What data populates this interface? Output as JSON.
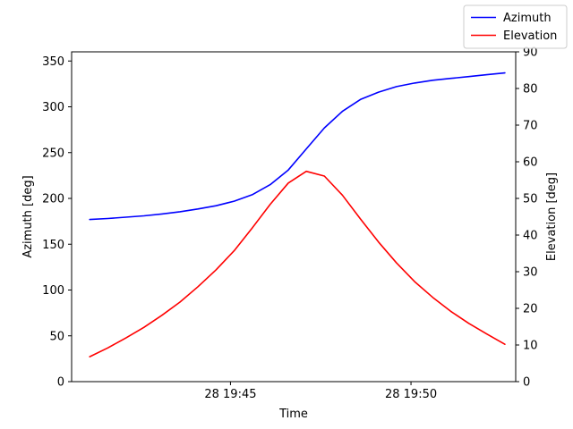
{
  "chart_data": {
    "type": "line",
    "x_axis": {
      "label": "Time",
      "range_minutes": [
        40.6,
        52.9
      ],
      "ticks": [
        {
          "value": 45,
          "label": "28 19:45"
        },
        {
          "value": 50,
          "label": "28 19:50"
        }
      ]
    },
    "y_left": {
      "label": "Azimuth [deg]",
      "ylim": [
        0,
        360
      ],
      "ticks": [
        0,
        50,
        100,
        150,
        200,
        250,
        300,
        350
      ]
    },
    "y_right": {
      "label": "Elevation [deg]",
      "ylim": [
        0,
        90
      ],
      "ticks": [
        0,
        10,
        20,
        30,
        40,
        50,
        60,
        70,
        80,
        90
      ]
    },
    "x": [
      41.1,
      41.6,
      42.1,
      42.6,
      43.1,
      43.6,
      44.1,
      44.6,
      45.1,
      45.6,
      46.1,
      46.6,
      47.1,
      47.6,
      48.1,
      48.6,
      49.1,
      49.6,
      50.1,
      50.6,
      51.1,
      51.6,
      52.1,
      52.6
    ],
    "series": [
      {
        "name": "Azimuth",
        "axis": "left",
        "color": "#0000ff",
        "values": [
          177,
          178,
          179.5,
          181,
          183,
          185.5,
          188.5,
          192,
          197,
          204,
          215,
          231,
          254,
          277,
          295,
          308,
          316,
          322,
          326,
          329,
          331,
          333,
          335,
          337
        ]
      },
      {
        "name": "Elevation",
        "axis": "right",
        "color": "#ff0000",
        "values": [
          6.8,
          9.2,
          11.9,
          14.8,
          18.1,
          21.7,
          25.9,
          30.5,
          35.7,
          41.9,
          48.4,
          54.2,
          57.4,
          56.1,
          50.9,
          44.4,
          38.1,
          32.4,
          27.3,
          23.0,
          19.2,
          15.9,
          13.0,
          10.2
        ]
      }
    ],
    "legend": {
      "position": "top-right",
      "entries": [
        {
          "label": "Azimuth",
          "color": "#0000ff"
        },
        {
          "label": "Elevation",
          "color": "#ff0000"
        }
      ]
    }
  }
}
